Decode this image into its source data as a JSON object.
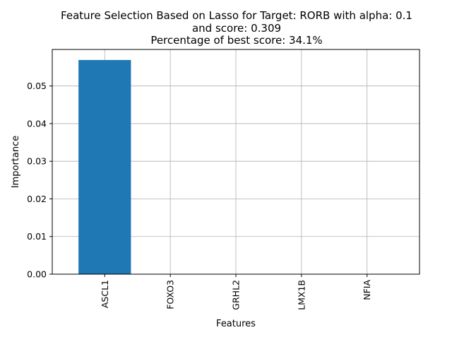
{
  "chart_data": {
    "type": "bar",
    "title_lines": [
      "Feature Selection Based on Lasso for Target: RORB with alpha: 0.1",
      "and score: 0.309",
      "Percentage of best score: 34.1%"
    ],
    "xlabel": "Features",
    "ylabel": "Importance",
    "categories": [
      "ASCL1",
      "FOXO3",
      "GRHL2",
      "LMX1B",
      "NFIA"
    ],
    "values": [
      0.0569,
      0,
      0,
      0,
      0
    ],
    "ylim": [
      0,
      0.0597
    ],
    "yticks": [
      0.0,
      0.01,
      0.02,
      0.03,
      0.04,
      0.05
    ],
    "ytick_labels": [
      "0.00",
      "0.01",
      "0.02",
      "0.03",
      "0.04",
      "0.05"
    ],
    "grid": true,
    "bar_color": "#1f77b4"
  }
}
